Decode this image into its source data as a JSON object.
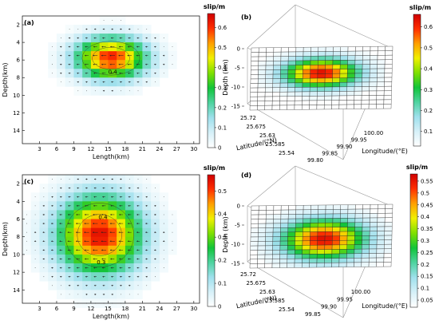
{
  "colors": {
    "scale": [
      "#ffffff",
      "#d6f0f8",
      "#9fe0ec",
      "#4fd3a0",
      "#12c43a",
      "#7fe000",
      "#f0f000",
      "#ffa000",
      "#ff3000",
      "#d00000"
    ]
  },
  "chart_data": [
    {
      "type": "heatmap",
      "panel": "(a)",
      "xlabel": "Length(km)",
      "ylabel": "Depth(km)",
      "xticks": [
        "3",
        "6",
        "9",
        "12",
        "15",
        "18",
        "21",
        "24",
        "27",
        "30"
      ],
      "yticks": [
        "2",
        "4",
        "6",
        "8",
        "10",
        "12",
        "14"
      ],
      "xlim": [
        0,
        31
      ],
      "ylim": [
        1,
        15.5
      ],
      "colorbar_title": "slip/m",
      "colorbar_ticks": [
        "0.6",
        "0.5",
        "0.4",
        "0.3",
        "0.2",
        "0.1",
        "0"
      ],
      "colorbar_range": [
        0,
        0.67
      ],
      "peak": {
        "x": 15.5,
        "y": 5.8,
        "value": 0.62
      },
      "spread": {
        "sx": 4.2,
        "sy": 1.6
      },
      "contour_labels": [
        "0.4"
      ]
    },
    {
      "type": "heatmap",
      "panel": "(b)",
      "xlabel": "Longitude/(°E)",
      "ylabel": "Latitude/(°N)",
      "zlabel": "Depth (km)",
      "zticks": [
        "0",
        "-5",
        "-10",
        "-15"
      ],
      "latticks": [
        "25.72",
        "25.675",
        "25.63",
        "25.585",
        "25.54"
      ],
      "lonticks": [
        "99.80",
        "99.85",
        "99.90",
        "99.95",
        "100.00"
      ],
      "colorbar_title": "slip/m",
      "colorbar_ticks": [
        "0.6",
        "0.5",
        "0.4",
        "0.3",
        "0.2",
        "0.1"
      ],
      "colorbar_range": [
        0.03,
        0.66
      ]
    },
    {
      "type": "heatmap",
      "panel": "(c)",
      "xlabel": "Length(km)",
      "ylabel": "Depth(km)",
      "xticks": [
        "3",
        "6",
        "9",
        "12",
        "15",
        "18",
        "21",
        "24",
        "27",
        "30"
      ],
      "yticks": [
        "2",
        "4",
        "6",
        "8",
        "10",
        "12",
        "14"
      ],
      "xlim": [
        0,
        31
      ],
      "ylim": [
        1,
        15.5
      ],
      "colorbar_title": "slip/m",
      "colorbar_ticks": [
        "0.5",
        "0.4",
        "0.3",
        "0.2",
        "0.1",
        "0"
      ],
      "colorbar_range": [
        0,
        0.57
      ],
      "peak": {
        "x": 13.5,
        "y": 7.8,
        "value": 0.55
      },
      "spread": {
        "sx": 5.0,
        "sy": 3.0
      },
      "contour_labels": [
        "0.3",
        "0.4"
      ]
    },
    {
      "type": "heatmap",
      "panel": "(d)",
      "xlabel": "Longitude/(°E)",
      "ylabel": "Latitude/(°N)",
      "zlabel": "Depth (km)",
      "zticks": [
        "0",
        "-5",
        "-10",
        "-15"
      ],
      "latticks": [
        "25.72",
        "25.675",
        "25.63",
        "25.585",
        "25.54"
      ],
      "lonticks": [
        "99.85",
        "99.90",
        "99.95",
        "100.00"
      ],
      "colorbar_title": "slip/m",
      "colorbar_ticks": [
        "0.55",
        "0.5",
        "0.45",
        "0.4",
        "0.35",
        "0.3",
        "0.25",
        "0.2",
        "0.15",
        "0.1",
        "0.05"
      ],
      "colorbar_range": [
        0.02,
        0.58
      ]
    }
  ]
}
